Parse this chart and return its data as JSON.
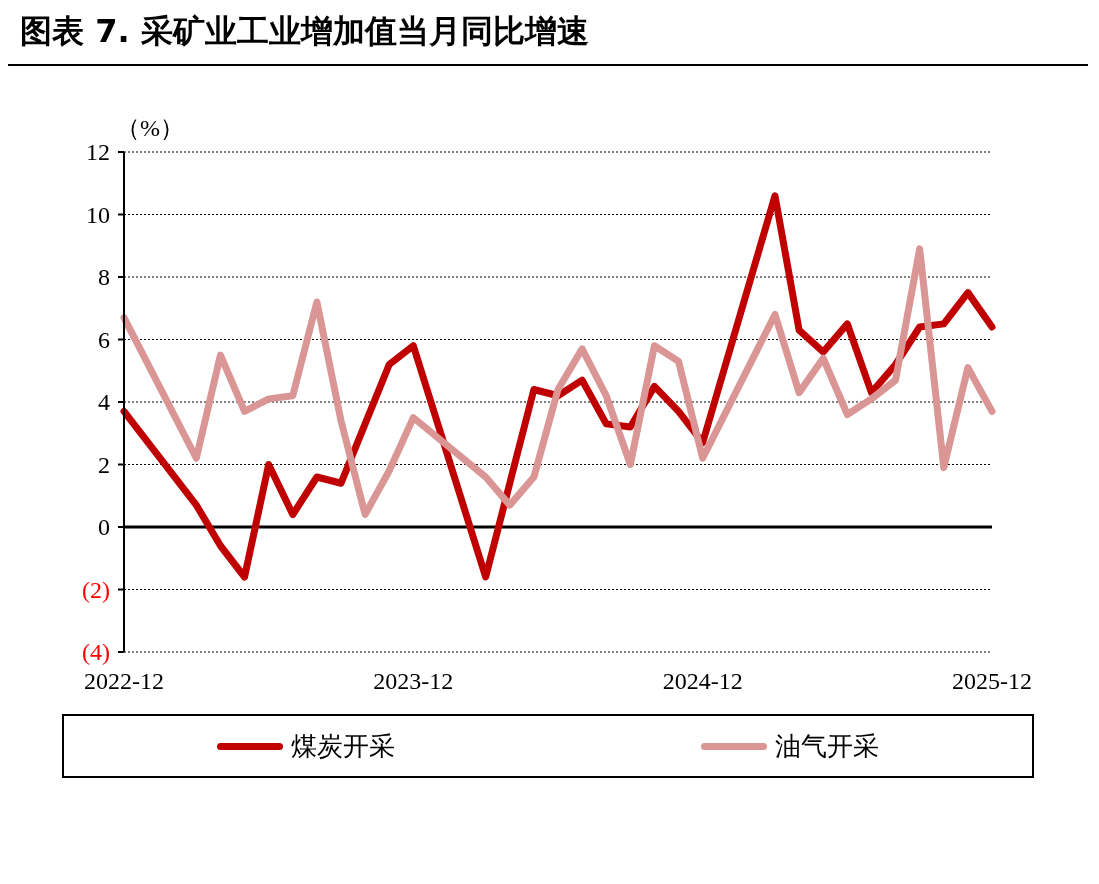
{
  "chart_data": {
    "type": "line",
    "title": "图表 7. 采矿业工业增加值当月同比增速",
    "ylabel": "（%）",
    "categories": [
      "2022-12",
      null,
      null,
      null,
      null,
      null,
      null,
      null,
      null,
      null,
      null,
      null,
      "2023-12",
      null,
      null,
      null,
      null,
      null,
      null,
      null,
      null,
      null,
      null,
      null,
      "2024-12",
      null,
      null,
      null,
      null,
      null,
      null,
      null,
      null,
      null,
      null,
      null,
      "2025-12"
    ],
    "series": [
      {
        "name": "煤炭开采",
        "color": "#c00000",
        "values": [
          3.7,
          null,
          null,
          0.7,
          -0.6,
          -1.6,
          2.0,
          0.4,
          1.6,
          1.4,
          3.3,
          5.2,
          5.8,
          null,
          null,
          -1.6,
          1.4,
          4.4,
          4.2,
          4.7,
          3.3,
          3.2,
          4.5,
          3.7,
          2.7,
          null,
          null,
          10.6,
          6.3,
          5.6,
          6.5,
          4.3,
          5.2,
          6.4,
          6.5,
          7.5,
          6.4
        ]
      },
      {
        "name": "油气开采",
        "color": "#d99694",
        "values": [
          6.7,
          null,
          null,
          2.2,
          5.5,
          3.7,
          4.1,
          4.2,
          7.2,
          3.4,
          0.4,
          1.8,
          3.5,
          null,
          null,
          1.6,
          0.7,
          1.6,
          4.4,
          5.7,
          4.2,
          2.0,
          5.8,
          5.3,
          2.2,
          null,
          null,
          6.8,
          4.3,
          5.4,
          3.6,
          4.1,
          4.7,
          8.9,
          1.9,
          5.1,
          3.7
        ]
      }
    ],
    "ylim": [
      -4,
      12
    ],
    "yticks": [
      {
        "value": -4,
        "label": "(4)"
      },
      {
        "value": -2,
        "label": "(2)"
      },
      0,
      2,
      4,
      6,
      8,
      10,
      12
    ],
    "ref_lines": [
      {
        "axis": "y",
        "value": 0,
        "color": "#000000"
      }
    ],
    "grid": "y",
    "legend": "bottom",
    "marker": "none",
    "line_style": "solid"
  }
}
